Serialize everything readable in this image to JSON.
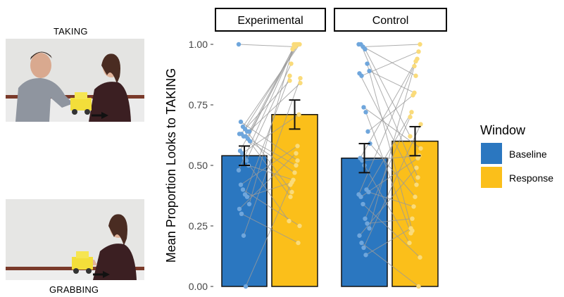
{
  "images": {
    "top_label": "TAKING",
    "bottom_label": "GRABBING"
  },
  "chart_data": {
    "type": "bar",
    "ylabel": "Mean Proportion Looks to TAKING",
    "yticks": [
      "0.00",
      "0.25",
      "0.50",
      "0.75",
      "1.00"
    ],
    "ylim": [
      0,
      1
    ],
    "grid": false,
    "panels": [
      "Experimental",
      "Control"
    ],
    "categories": [
      "Baseline",
      "Response"
    ],
    "series": [
      {
        "name": "Baseline",
        "color": "#2b77c0",
        "point_color": "#6fa6dc",
        "values": [
          0.54,
          0.53
        ],
        "error": [
          [
            0.5,
            0.58
          ],
          [
            0.47,
            0.59
          ]
        ]
      },
      {
        "name": "Response",
        "color": "#fbbf1a",
        "point_color": "#fadb7a",
        "values": [
          0.71,
          0.6
        ],
        "error": [
          [
            0.65,
            0.77
          ],
          [
            0.54,
            0.66
          ]
        ]
      }
    ],
    "points": {
      "Experimental": {
        "baseline": [
          1.0,
          0.68,
          0.66,
          0.65,
          0.64,
          0.64,
          0.63,
          0.63,
          0.62,
          0.62,
          0.61,
          0.6,
          0.56,
          0.55,
          0.53,
          0.52,
          0.5,
          0.48,
          0.42,
          0.4,
          0.38,
          0.37,
          0.34,
          0.32,
          0.3,
          0.21,
          0.0
        ],
        "response": [
          1.0,
          1.0,
          1.0,
          1.0,
          1.0,
          0.99,
          0.99,
          0.98,
          0.92,
          0.87,
          0.86,
          0.85,
          0.84,
          0.71,
          0.58,
          0.55,
          0.52,
          0.5,
          0.47,
          0.44,
          0.43,
          0.42,
          0.39,
          0.37,
          0.27,
          0.25,
          0.18
        ]
      },
      "Control": {
        "baseline": [
          1.0,
          1.0,
          0.99,
          0.98,
          0.92,
          0.89,
          0.88,
          0.87,
          0.74,
          0.72,
          0.64,
          0.59,
          0.53,
          0.52,
          0.5,
          0.4,
          0.39,
          0.38,
          0.37,
          0.34,
          0.28,
          0.26,
          0.24,
          0.21,
          0.18,
          0.16,
          0.13
        ],
        "response": [
          1.0,
          0.97,
          0.94,
          0.93,
          0.91,
          0.87,
          0.8,
          0.79,
          0.72,
          0.7,
          0.67,
          0.62,
          0.57,
          0.54,
          0.53,
          0.49,
          0.45,
          0.42,
          0.37,
          0.33,
          0.28,
          0.24,
          0.23,
          0.22,
          0.18,
          0.12,
          0.0
        ]
      }
    },
    "legend": {
      "title": "Window",
      "position": "right",
      "items": [
        "Baseline",
        "Response"
      ]
    }
  }
}
